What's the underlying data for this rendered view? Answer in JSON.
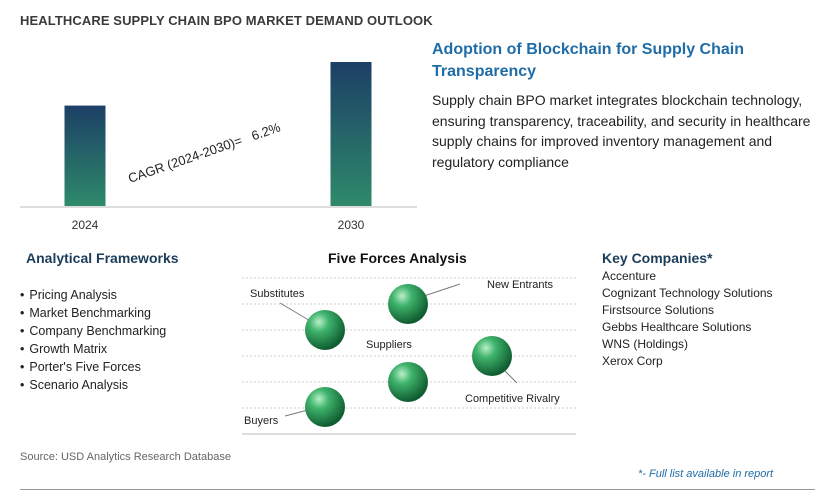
{
  "title": "HEALTHCARE SUPPLY CHAIN BPO MARKET DEMAND OUTLOOK",
  "chart_data": {
    "type": "bar",
    "categories": [
      "2024",
      "2030"
    ],
    "values": [
      1,
      1.434
    ],
    "annotation": "CAGR (2024-2030)=   6.2%",
    "colors": [
      "#2e8a6a",
      "#1c3f66"
    ]
  },
  "highlight": {
    "heading": "Adoption of Blockchain for Supply Chain Transparency",
    "description": "Supply chain BPO market integrates blockchain technology, ensuring transparency, traceability, and security in healthcare supply chains for improved inventory management and regulatory compliance"
  },
  "frameworks": {
    "heading": "Analytical Frameworks",
    "items": [
      "Pricing Analysis",
      "Market Benchmarking",
      "Company Benchmarking",
      "Growth Matrix",
      "Porter's Five Forces",
      "Scenario Analysis"
    ]
  },
  "five_forces": {
    "heading": "Five Forces Analysis",
    "labels": {
      "substitutes": "Substitutes",
      "new_entrants": "New Entrants",
      "suppliers": "Suppliers",
      "competitive_rivalry": "Competitive Rivalry",
      "buyers": "Buyers"
    },
    "sphere_color": "#2f9a5c"
  },
  "companies": {
    "heading": "Key Companies*",
    "items": [
      "Accenture",
      "Cognizant Technology Solutions",
      "Firstsource Solutions",
      "Gebbs Healthcare Solutions",
      "WNS (Holdings)",
      "Xerox Corp"
    ]
  },
  "source": "Source: USD Analytics Research Database",
  "footnote": "*- Full list available in report"
}
